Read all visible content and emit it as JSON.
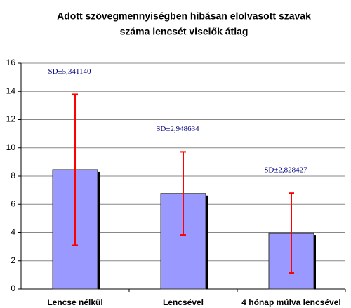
{
  "chart_data": {
    "type": "bar",
    "title": [
      "Adott szövegmennyiségben hibásan elolvasott szavak",
      "száma lencsét viselők átlag"
    ],
    "categories": [
      "Lencse nélkül",
      "Lencsével",
      "4 hónap múlva lencsével"
    ],
    "values": [
      8.45,
      6.77,
      3.97
    ],
    "errors": [
      5.34114,
      2.948634,
      2.828427
    ],
    "error_labels": [
      "SD±5,341140",
      "SD±2,948634",
      "SD±2,828427"
    ],
    "color": "#9999ff",
    "error_color": "#ff0000",
    "ylim": [
      0,
      16
    ],
    "yticks": [
      0,
      2,
      4,
      6,
      8,
      10,
      12,
      14,
      16
    ],
    "grid": true
  }
}
